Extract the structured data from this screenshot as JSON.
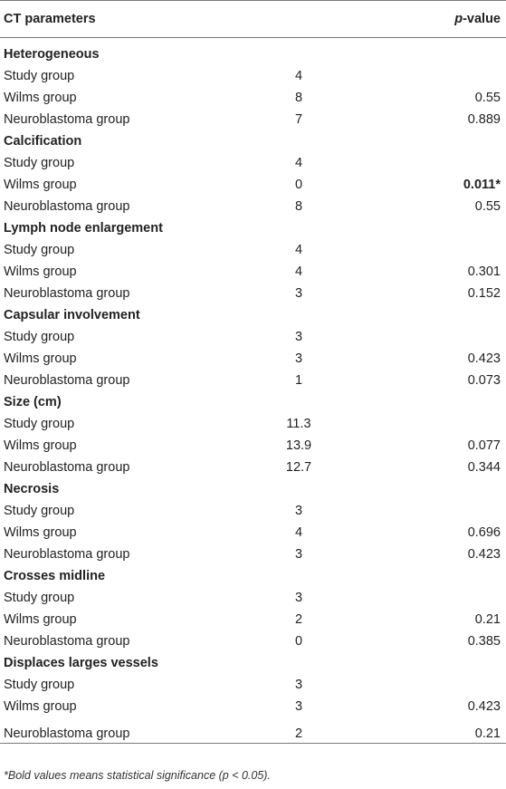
{
  "header": {
    "col1": "CT parameters",
    "col3_italic": "p",
    "col3_rest": "-value"
  },
  "sections": [
    {
      "title": "Heterogeneous",
      "rows": [
        {
          "label": "Study group",
          "value": "4",
          "p": ""
        },
        {
          "label": "Wilms group",
          "value": "8",
          "p": "0.55"
        },
        {
          "label": "Neuroblastoma group",
          "value": "7",
          "p": "0.889"
        }
      ]
    },
    {
      "title": "Calcification",
      "rows": [
        {
          "label": "Study group",
          "value": "4",
          "p": ""
        },
        {
          "label": "Wilms group",
          "value": "0",
          "p": "0.011*",
          "p_bold": true
        },
        {
          "label": "Neuroblastoma group",
          "value": "8",
          "p": "0.55"
        }
      ]
    },
    {
      "title": "Lymph node enlargement",
      "rows": [
        {
          "label": "Study group",
          "value": "4",
          "p": ""
        },
        {
          "label": "Wilms group",
          "value": "4",
          "p": "0.301"
        },
        {
          "label": "Neuroblastoma group",
          "value": "3",
          "p": "0.152"
        }
      ]
    },
    {
      "title": "Capsular involvement",
      "rows": [
        {
          "label": "Study group",
          "value": "3",
          "p": ""
        },
        {
          "label": "Wilms group",
          "value": "3",
          "p": "0.423"
        },
        {
          "label": "Neuroblastoma group",
          "value": "1",
          "p": "0.073"
        }
      ]
    },
    {
      "title": "Size (cm)",
      "rows": [
        {
          "label": "Study group",
          "value": "11.3",
          "p": ""
        },
        {
          "label": "Wilms group",
          "value": "13.9",
          "p": "0.077"
        },
        {
          "label": "Neuroblastoma group",
          "value": "12.7",
          "p": "0.344"
        }
      ]
    },
    {
      "title": "Necrosis",
      "rows": [
        {
          "label": "Study group",
          "value": "3",
          "p": ""
        },
        {
          "label": "Wilms group",
          "value": "4",
          "p": "0.696"
        },
        {
          "label": "Neuroblastoma group",
          "value": "3",
          "p": "0.423"
        }
      ]
    },
    {
      "title": "Crosses midline",
      "rows": [
        {
          "label": "Study group",
          "value": "3",
          "p": ""
        },
        {
          "label": "Wilms group",
          "value": "2",
          "p": "0.21"
        },
        {
          "label": "Neuroblastoma group",
          "value": "0",
          "p": "0.385"
        }
      ]
    },
    {
      "title": "Displaces larges vessels",
      "rows": [
        {
          "label": "Study group",
          "value": "3",
          "p": ""
        },
        {
          "label": "Wilms group",
          "value": "3",
          "p": "0.423"
        },
        {
          "label": "Neuroblastoma group",
          "value": "2",
          "p": "0.21"
        }
      ]
    }
  ],
  "footnote": "*Bold values means statistical significance (p < 0.05)."
}
